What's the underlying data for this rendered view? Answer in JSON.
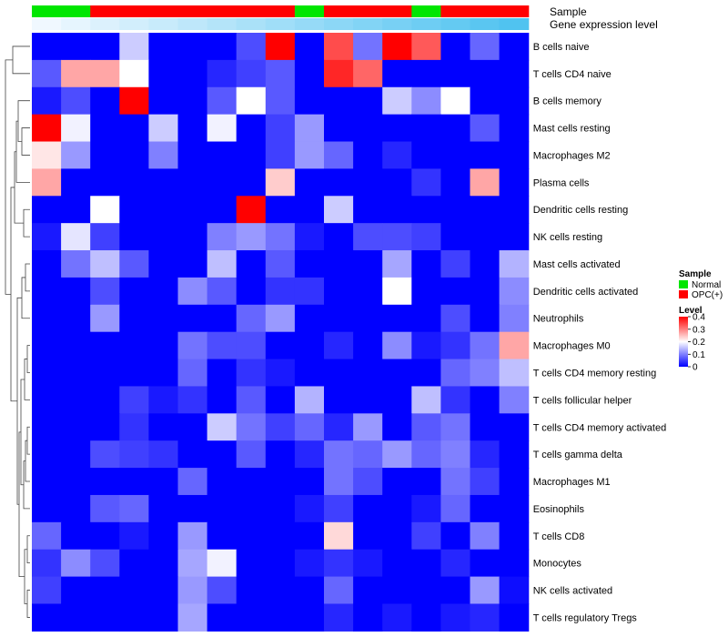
{
  "chart_data": {
    "type": "heatmap",
    "annotation_labels": [
      "Sample",
      "Gene expression level"
    ],
    "sample_groups": [
      "Normal",
      "Normal",
      "OPC(+)",
      "OPC(+)",
      "OPC(+)",
      "OPC(+)",
      "OPC(+)",
      "OPC(+)",
      "OPC(+)",
      "Normal",
      "OPC(+)",
      "OPC(+)",
      "OPC(+)",
      "Normal",
      "OPC(+)",
      "OPC(+)",
      "OPC(+)"
    ],
    "expression_level": [
      0.0,
      0.02,
      0.04,
      0.06,
      0.08,
      0.1,
      0.12,
      0.14,
      0.16,
      0.18,
      0.2,
      0.22,
      0.24,
      0.26,
      0.28,
      0.3,
      0.32
    ],
    "rows": [
      "B cells naive",
      "T cells CD4 naive",
      "B cells memory",
      "Mast cells resting",
      "Macrophages M2",
      "Plasma cells",
      "Dendritic cells resting",
      "NK cells resting",
      "Mast cells activated",
      "Dendritic cells activated",
      "Neutrophils",
      "Macrophages M0",
      "T cells CD4 memory resting",
      "T cells follicular helper",
      "T cells CD4 memory activated",
      "T cells gamma delta",
      "Macrophages M1",
      "Eosinophils",
      "T cells CD8",
      "Monocytes",
      "NK cells activated",
      "T cells regulatory  Tregs"
    ],
    "values": [
      [
        0,
        0,
        0,
        0.16,
        0,
        0,
        0,
        0.06,
        0.4,
        0,
        0.34,
        0.09,
        0.4,
        0.33,
        0,
        0.08,
        0
      ],
      [
        0.07,
        0.27,
        0.27,
        0.2,
        0,
        0,
        0.03,
        0.05,
        0.07,
        0,
        0.37,
        0.32,
        0,
        0,
        0,
        0,
        0
      ],
      [
        0.02,
        0.06,
        0,
        0.4,
        0,
        0,
        0.07,
        0.2,
        0.07,
        0,
        0,
        0,
        0.16,
        0.11,
        0.2,
        0,
        0
      ],
      [
        0.4,
        0.19,
        0,
        0,
        0.16,
        0,
        0.19,
        0,
        0.05,
        0.12,
        0,
        0,
        0,
        0,
        0,
        0.07,
        0
      ],
      [
        0.22,
        0.12,
        0,
        0,
        0.1,
        0,
        0,
        0,
        0.05,
        0.12,
        0.08,
        0,
        0.03,
        0,
        0,
        0,
        0
      ],
      [
        0.27,
        0,
        0,
        0,
        0,
        0,
        0,
        0,
        0.24,
        0,
        0,
        0,
        0,
        0.04,
        0,
        0.27,
        0
      ],
      [
        0,
        0,
        0.2,
        0,
        0,
        0,
        0,
        0.4,
        0,
        0,
        0.16,
        0,
        0,
        0,
        0,
        0,
        0
      ],
      [
        0.02,
        0.18,
        0.05,
        0,
        0,
        0,
        0.1,
        0.12,
        0.09,
        0.02,
        0,
        0.06,
        0.06,
        0.05,
        0,
        0,
        0
      ],
      [
        0,
        0.09,
        0.15,
        0.07,
        0,
        0,
        0.15,
        0,
        0.07,
        0,
        0,
        0,
        0.13,
        0,
        0.05,
        0,
        0.14
      ],
      [
        0,
        0,
        0.06,
        0,
        0,
        0.11,
        0.07,
        0,
        0.04,
        0.04,
        0,
        0,
        0.2,
        0,
        0,
        0,
        0.11
      ],
      [
        0,
        0,
        0.12,
        0,
        0,
        0,
        0,
        0.08,
        0.12,
        0,
        0,
        0,
        0,
        0,
        0.06,
        0,
        0.1
      ],
      [
        0,
        0,
        0,
        0,
        0,
        0.09,
        0.06,
        0.06,
        0,
        0,
        0.03,
        0,
        0.11,
        0.02,
        0.04,
        0.09,
        0.27
      ],
      [
        0,
        0,
        0,
        0,
        0,
        0.08,
        0,
        0.04,
        0.02,
        0,
        0,
        0,
        0,
        0,
        0.08,
        0.1,
        0.15
      ],
      [
        0,
        0,
        0,
        0.05,
        0.02,
        0.04,
        0,
        0.07,
        0,
        0.14,
        0,
        0,
        0,
        0.15,
        0.04,
        0,
        0.1
      ],
      [
        0,
        0,
        0,
        0.04,
        0,
        0,
        0.16,
        0.09,
        0.05,
        0.08,
        0.03,
        0.12,
        0,
        0.07,
        0.09,
        0,
        0
      ],
      [
        0,
        0,
        0.06,
        0.05,
        0.04,
        0,
        0,
        0.07,
        0,
        0.03,
        0.09,
        0.08,
        0.12,
        0.08,
        0.1,
        0.03,
        0
      ],
      [
        0,
        0,
        0,
        0,
        0,
        0.08,
        0,
        0,
        0,
        0,
        0.09,
        0.06,
        0,
        0,
        0.09,
        0.05,
        0
      ],
      [
        0,
        0,
        0.07,
        0.08,
        0,
        0,
        0,
        0,
        0,
        0.02,
        0.05,
        0,
        0,
        0.02,
        0.08,
        0,
        0
      ],
      [
        0.08,
        0,
        0,
        0.02,
        0,
        0.12,
        0,
        0,
        0,
        0,
        0.23,
        0,
        0,
        0.05,
        0,
        0.1,
        0
      ],
      [
        0.04,
        0.11,
        0.06,
        0,
        0,
        0.13,
        0.19,
        0,
        0,
        0.02,
        0.04,
        0.02,
        0,
        0,
        0.03,
        0,
        0
      ],
      [
        0.05,
        0,
        0,
        0,
        0,
        0.12,
        0.06,
        0,
        0,
        0,
        0.08,
        0,
        0,
        0,
        0,
        0.12,
        0.01
      ],
      [
        0,
        0,
        0,
        0,
        0,
        0.13,
        0,
        0,
        0,
        0,
        0.03,
        0,
        0.02,
        0,
        0.02,
        0.03,
        0
      ]
    ],
    "legend": {
      "sample_title": "Sample",
      "sample_entries": [
        {
          "label": "Normal",
          "color": "#00e600"
        },
        {
          "label": "OPC(+)",
          "color": "#ff0000"
        }
      ],
      "level_title": "Level",
      "level_ticks": [
        "0.4",
        "0.3",
        "0.2",
        "0.1",
        "0"
      ],
      "level_tick_values": [
        0.4,
        0.3,
        0.2,
        0.1,
        0
      ],
      "placement": "right"
    },
    "color_scale": {
      "low": "#0000ff",
      "mid": "#ffffff",
      "high": "#ff0000",
      "min": 0,
      "mid_value": 0.2,
      "max": 0.4
    },
    "grid": false,
    "clustering": "rows"
  }
}
